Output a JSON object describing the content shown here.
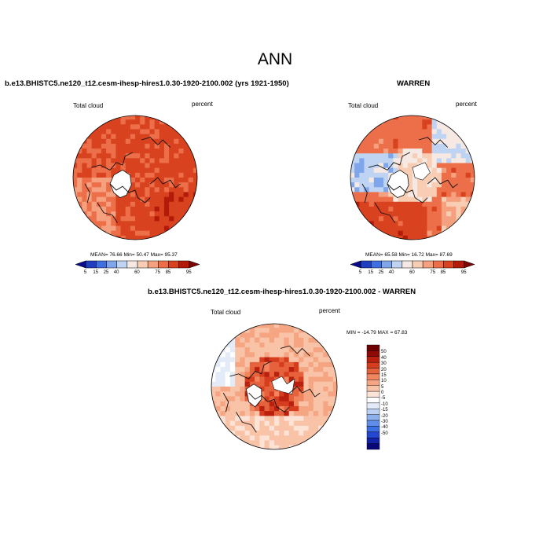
{
  "page_title": "ANN",
  "palette": {
    "abs": [
      "#0a0a8c",
      "#1f3fbf",
      "#3f6fe0",
      "#7fa6ea",
      "#bfd4f2",
      "#f6e8e2",
      "#f9cdb4",
      "#f5a07e",
      "#ec6f4a",
      "#d9421f",
      "#b31a0a",
      "#7d0505"
    ],
    "diff": [
      "#07077a",
      "#1323a8",
      "#2547cf",
      "#3b6fe3",
      "#5d8fea",
      "#8db0ef",
      "#bcd0f4",
      "#e3ebf8",
      "#ffffff",
      "#fde2d6",
      "#f9c3a8",
      "#f5a582",
      "#f0855e",
      "#e6623d",
      "#d63d1f",
      "#b9200e",
      "#8e0a04",
      "#6e0000"
    ]
  },
  "panel1": {
    "title": "b.e13.BHISTC5.ne120_t12.cesm-ihesp-hires1.0.30-1920-2100.002 (yrs 1921-1950)",
    "left_label": "Total cloud",
    "right_label": "percent",
    "stats": "MEAN=  76.66  Min=  50.47  Max=  95.37",
    "colorbar_ticks": [
      "5",
      "15",
      "25",
      "40",
      "60",
      "75",
      "85",
      "95"
    ]
  },
  "panel2": {
    "title": "WARREN",
    "left_label": "Total cloud",
    "right_label": "percent",
    "stats": "MEAN=  65.58  Min=  16.72  Max=  87.69",
    "colorbar_ticks": [
      "5",
      "15",
      "25",
      "40",
      "60",
      "75",
      "85",
      "95"
    ]
  },
  "panel3": {
    "title": "b.e13.BHISTC5.ne120_t12.cesm-ihesp-hires1.0.30-1920-2100.002 - WARREN",
    "left_label": "Total cloud",
    "right_label": "percent",
    "stats": "MIN = -14.79 MAX =  67.83",
    "colorbar_ticks": [
      "50",
      "40",
      "30",
      "20",
      "15",
      "10",
      "5",
      "0",
      "-5",
      "-10",
      "-15",
      "-20",
      "-30",
      "-40",
      "-50"
    ]
  }
}
